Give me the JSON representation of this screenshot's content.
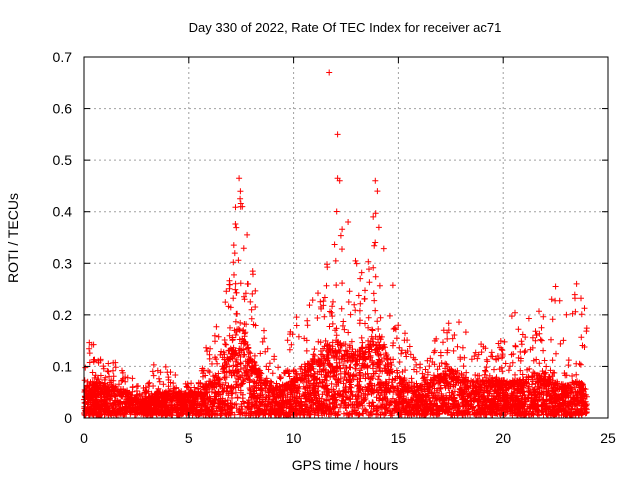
{
  "chart_data": {
    "type": "scatter",
    "title": "Day 330 of 2022, Rate Of TEC Index for receiver ac71",
    "xlabel": "GPS time / hours",
    "ylabel": "ROTI / TECUs",
    "xlim": [
      0,
      25
    ],
    "ylim": [
      0,
      0.7
    ],
    "xticks": [
      0,
      5,
      10,
      15,
      20,
      25
    ],
    "yticks": [
      0,
      0.1,
      0.2,
      0.3,
      0.4,
      0.5,
      0.6,
      0.7
    ],
    "xtick_labels": [
      "0",
      "5",
      "10",
      "15",
      "20",
      "25"
    ],
    "ytick_labels": [
      "0",
      "0.1",
      "0.2",
      "0.3",
      "0.4",
      "0.5",
      "0.6",
      "0.7"
    ],
    "grid": true,
    "marker": "+",
    "marker_color": "#ff0000",
    "series": [
      {
        "name": "ROTI",
        "approx_envelope": {
          "x": [
            0,
            0.5,
            1,
            1.5,
            2,
            2.5,
            3,
            3.5,
            4,
            4.5,
            5,
            5.5,
            6,
            6.5,
            7,
            7.3,
            7.6,
            8,
            8.5,
            9,
            9.5,
            10,
            10.5,
            11,
            11.5,
            12,
            12.5,
            13,
            13.5,
            14,
            14.5,
            15,
            15.5,
            16,
            16.5,
            17,
            17.5,
            18,
            18.5,
            19,
            19.5,
            20,
            20.5,
            21,
            21.5,
            22,
            22.5,
            23,
            23.5,
            24
          ],
          "typical_y": [
            0.05,
            0.06,
            0.05,
            0.05,
            0.04,
            0.03,
            0.03,
            0.04,
            0.04,
            0.04,
            0.04,
            0.04,
            0.06,
            0.08,
            0.12,
            0.18,
            0.15,
            0.1,
            0.07,
            0.05,
            0.05,
            0.06,
            0.08,
            0.1,
            0.12,
            0.13,
            0.12,
            0.11,
            0.12,
            0.14,
            0.1,
            0.07,
            0.05,
            0.05,
            0.06,
            0.07,
            0.08,
            0.07,
            0.06,
            0.06,
            0.06,
            0.06,
            0.06,
            0.06,
            0.07,
            0.07,
            0.06,
            0.05,
            0.06,
            0.05
          ],
          "max_y": [
            0.18,
            0.14,
            0.12,
            0.11,
            0.09,
            0.07,
            0.06,
            0.13,
            0.12,
            0.08,
            0.07,
            0.07,
            0.18,
            0.2,
            0.3,
            0.47,
            0.42,
            0.3,
            0.18,
            0.14,
            0.1,
            0.22,
            0.2,
            0.27,
            0.3,
            0.46,
            0.38,
            0.33,
            0.3,
            0.46,
            0.33,
            0.2,
            0.15,
            0.12,
            0.15,
            0.18,
            0.19,
            0.19,
            0.18,
            0.14,
            0.14,
            0.16,
            0.21,
            0.19,
            0.21,
            0.22,
            0.25,
            0.2,
            0.26,
            0.22
          ]
        },
        "outliers": [
          {
            "x": 11.7,
            "y": 0.67
          },
          {
            "x": 12.1,
            "y": 0.55
          },
          {
            "x": 12.1,
            "y": 0.465
          },
          {
            "x": 12.2,
            "y": 0.46
          },
          {
            "x": 7.4,
            "y": 0.465
          },
          {
            "x": 13.9,
            "y": 0.46
          },
          {
            "x": 14.0,
            "y": 0.44
          },
          {
            "x": 12.6,
            "y": 0.38
          },
          {
            "x": 13.8,
            "y": 0.39
          },
          {
            "x": 22.5,
            "y": 0.255
          },
          {
            "x": 23.5,
            "y": 0.26
          }
        ]
      }
    ]
  }
}
